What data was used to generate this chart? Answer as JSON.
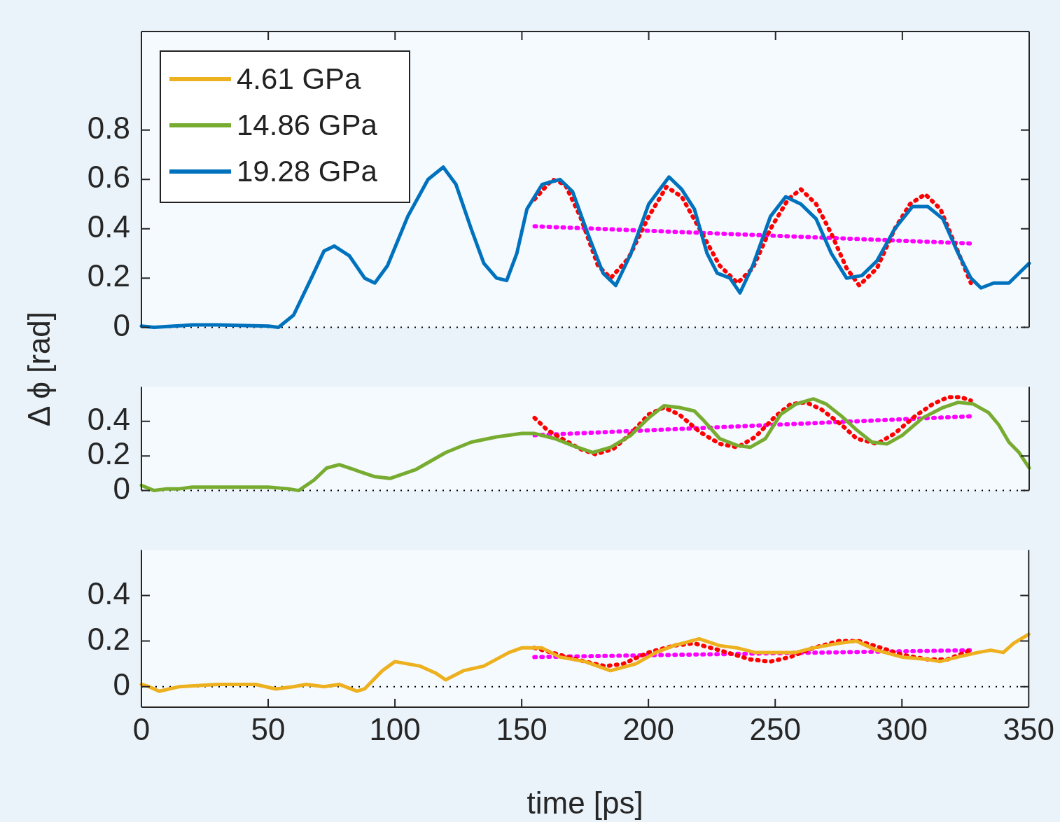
{
  "chart_data": [
    {
      "type": "line",
      "legend": "top left",
      "tick_labels": "y",
      "xlim": [
        0,
        350
      ],
      "xticks": [
        0,
        50,
        100,
        150,
        200,
        250,
        300,
        350
      ],
      "ylim": [
        0,
        1.2
      ],
      "yticks": [
        0,
        0.2,
        0.4,
        0.6,
        0.8
      ],
      "ref_lines": [
        {
          "axis": "y",
          "value": 0,
          "color": "#000000",
          "line_style": "dotted"
        }
      ],
      "series": [
        {
          "name": "19.28 GPa",
          "color": "#0072bd",
          "line_style": "solid",
          "x": [
            0,
            5,
            20,
            30,
            50,
            54,
            60,
            67,
            72,
            76,
            82,
            88,
            92,
            97,
            105,
            113,
            119,
            124,
            130,
            135,
            140,
            144,
            148,
            152,
            158,
            165,
            170,
            176,
            182,
            187,
            193,
            200,
            208,
            213,
            218,
            223,
            227,
            232,
            236,
            241,
            248,
            254,
            260,
            266,
            272,
            278,
            284,
            290,
            297,
            304,
            310,
            316,
            322,
            327,
            331,
            336,
            342,
            350
          ],
          "values": [
            0.005,
            0,
            0.01,
            0.01,
            0.005,
            0,
            0.05,
            0.2,
            0.31,
            0.33,
            0.29,
            0.2,
            0.18,
            0.25,
            0.45,
            0.6,
            0.65,
            0.58,
            0.4,
            0.26,
            0.2,
            0.19,
            0.3,
            0.48,
            0.58,
            0.6,
            0.55,
            0.38,
            0.22,
            0.17,
            0.3,
            0.5,
            0.61,
            0.56,
            0.48,
            0.3,
            0.22,
            0.2,
            0.14,
            0.25,
            0.45,
            0.53,
            0.5,
            0.44,
            0.3,
            0.2,
            0.21,
            0.27,
            0.4,
            0.49,
            0.49,
            0.44,
            0.3,
            0.2,
            0.16,
            0.18,
            0.18,
            0.26
          ]
        },
        {
          "color": "#ff0000",
          "line_style": "dotted",
          "x": [
            155,
            162,
            167,
            173,
            180,
            185,
            192,
            200,
            207,
            213,
            220,
            228,
            235,
            241,
            248,
            255,
            260,
            266,
            272,
            278,
            283,
            290,
            297,
            303,
            309,
            315,
            321,
            327
          ],
          "values": [
            0.52,
            0.6,
            0.58,
            0.45,
            0.25,
            0.2,
            0.28,
            0.45,
            0.57,
            0.53,
            0.4,
            0.25,
            0.18,
            0.24,
            0.4,
            0.52,
            0.56,
            0.5,
            0.38,
            0.24,
            0.17,
            0.24,
            0.4,
            0.5,
            0.54,
            0.48,
            0.33,
            0.18
          ]
        },
        {
          "color": "#ff00ff",
          "line_style": "dotted",
          "x": [
            155,
            328
          ],
          "values": [
            0.41,
            0.34
          ]
        }
      ]
    },
    {
      "type": "line",
      "ylabel": "Δ ϕ [rad]",
      "tick_labels": "y",
      "xlim": [
        0,
        350
      ],
      "xticks": [
        0,
        50,
        100,
        150,
        200,
        250,
        300,
        350
      ],
      "ylim": [
        0,
        0.6
      ],
      "yticks": [
        0,
        0.2,
        0.4
      ],
      "ref_lines": [
        {
          "axis": "y",
          "value": 0,
          "color": "#000000",
          "line_style": "dotted"
        }
      ],
      "series": [
        {
          "name": "14.86 GPa",
          "color": "#77ac30",
          "line_style": "solid",
          "x": [
            0,
            5,
            10,
            15,
            20,
            50,
            58,
            62,
            68,
            73,
            78,
            84,
            92,
            98,
            108,
            120,
            130,
            140,
            150,
            155,
            163,
            170,
            178,
            185,
            193,
            200,
            206,
            212,
            218,
            222,
            228,
            235,
            240,
            246,
            252,
            258,
            265,
            270,
            276,
            282,
            288,
            294,
            300,
            308,
            316,
            322,
            328,
            334,
            338,
            342,
            346,
            350
          ],
          "values": [
            0.03,
            0,
            0.01,
            0.01,
            0.02,
            0.02,
            0.01,
            0,
            0.06,
            0.13,
            0.15,
            0.12,
            0.08,
            0.07,
            0.12,
            0.22,
            0.28,
            0.31,
            0.33,
            0.33,
            0.3,
            0.26,
            0.22,
            0.25,
            0.32,
            0.42,
            0.49,
            0.48,
            0.46,
            0.4,
            0.3,
            0.26,
            0.25,
            0.3,
            0.44,
            0.5,
            0.53,
            0.5,
            0.43,
            0.35,
            0.28,
            0.27,
            0.32,
            0.42,
            0.48,
            0.51,
            0.5,
            0.45,
            0.38,
            0.28,
            0.22,
            0.13
          ]
        },
        {
          "color": "#ff0000",
          "line_style": "dotted",
          "x": [
            155,
            160,
            167,
            173,
            179,
            186,
            193,
            200,
            206,
            212,
            220,
            228,
            235,
            242,
            250,
            256,
            262,
            268,
            276,
            282,
            290,
            297,
            305,
            312,
            318,
            323,
            327
          ],
          "values": [
            0.42,
            0.35,
            0.29,
            0.24,
            0.21,
            0.24,
            0.33,
            0.44,
            0.48,
            0.44,
            0.34,
            0.27,
            0.25,
            0.31,
            0.43,
            0.5,
            0.51,
            0.47,
            0.38,
            0.3,
            0.27,
            0.33,
            0.43,
            0.5,
            0.54,
            0.54,
            0.52
          ]
        },
        {
          "color": "#ff00ff",
          "line_style": "dotted",
          "x": [
            155,
            328
          ],
          "values": [
            0.32,
            0.43
          ]
        }
      ]
    },
    {
      "type": "line",
      "xlabel": "time [ps]",
      "xlim": [
        0,
        350
      ],
      "xticks": [
        0,
        50,
        100,
        150,
        200,
        250,
        300,
        350
      ],
      "ylim": [
        -0.09,
        0.6
      ],
      "yticks": [
        0,
        0.2,
        0.4
      ],
      "ref_lines": [
        {
          "axis": "y",
          "value": 0,
          "color": "#000000",
          "line_style": "dotted"
        }
      ],
      "series": [
        {
          "name": "4.61 GPa",
          "color": "#edb120",
          "line_style": "solid",
          "x": [
            0,
            3,
            7,
            15,
            30,
            45,
            53,
            60,
            65,
            72,
            78,
            85,
            88,
            95,
            100,
            110,
            116,
            120,
            127,
            135,
            145,
            150,
            158,
            165,
            175,
            185,
            195,
            203,
            210,
            220,
            228,
            235,
            242,
            250,
            258,
            265,
            275,
            282,
            290,
            300,
            310,
            315,
            322,
            330,
            335,
            340,
            344,
            350
          ],
          "values": [
            0.01,
            0,
            -0.02,
            0,
            0.01,
            0.01,
            -0.01,
            0,
            0.01,
            0,
            0.01,
            -0.02,
            -0.01,
            0.07,
            0.11,
            0.09,
            0.06,
            0.03,
            0.07,
            0.09,
            0.15,
            0.17,
            0.17,
            0.13,
            0.11,
            0.07,
            0.1,
            0.15,
            0.18,
            0.21,
            0.18,
            0.17,
            0.15,
            0.15,
            0.15,
            0.17,
            0.19,
            0.2,
            0.16,
            0.13,
            0.12,
            0.11,
            0.13,
            0.15,
            0.16,
            0.15,
            0.19,
            0.23
          ]
        },
        {
          "color": "#ff0000",
          "line_style": "dotted",
          "x": [
            155,
            165,
            175,
            183,
            190,
            200,
            210,
            218,
            228,
            240,
            248,
            256,
            265,
            275,
            283,
            292,
            300,
            310,
            318,
            327
          ],
          "values": [
            0.17,
            0.14,
            0.11,
            0.09,
            0.1,
            0.15,
            0.18,
            0.19,
            0.16,
            0.12,
            0.11,
            0.13,
            0.17,
            0.2,
            0.2,
            0.17,
            0.14,
            0.12,
            0.12,
            0.16
          ]
        },
        {
          "color": "#ff00ff",
          "line_style": "dotted",
          "x": [
            155,
            328
          ],
          "values": [
            0.13,
            0.16
          ]
        }
      ]
    }
  ]
}
